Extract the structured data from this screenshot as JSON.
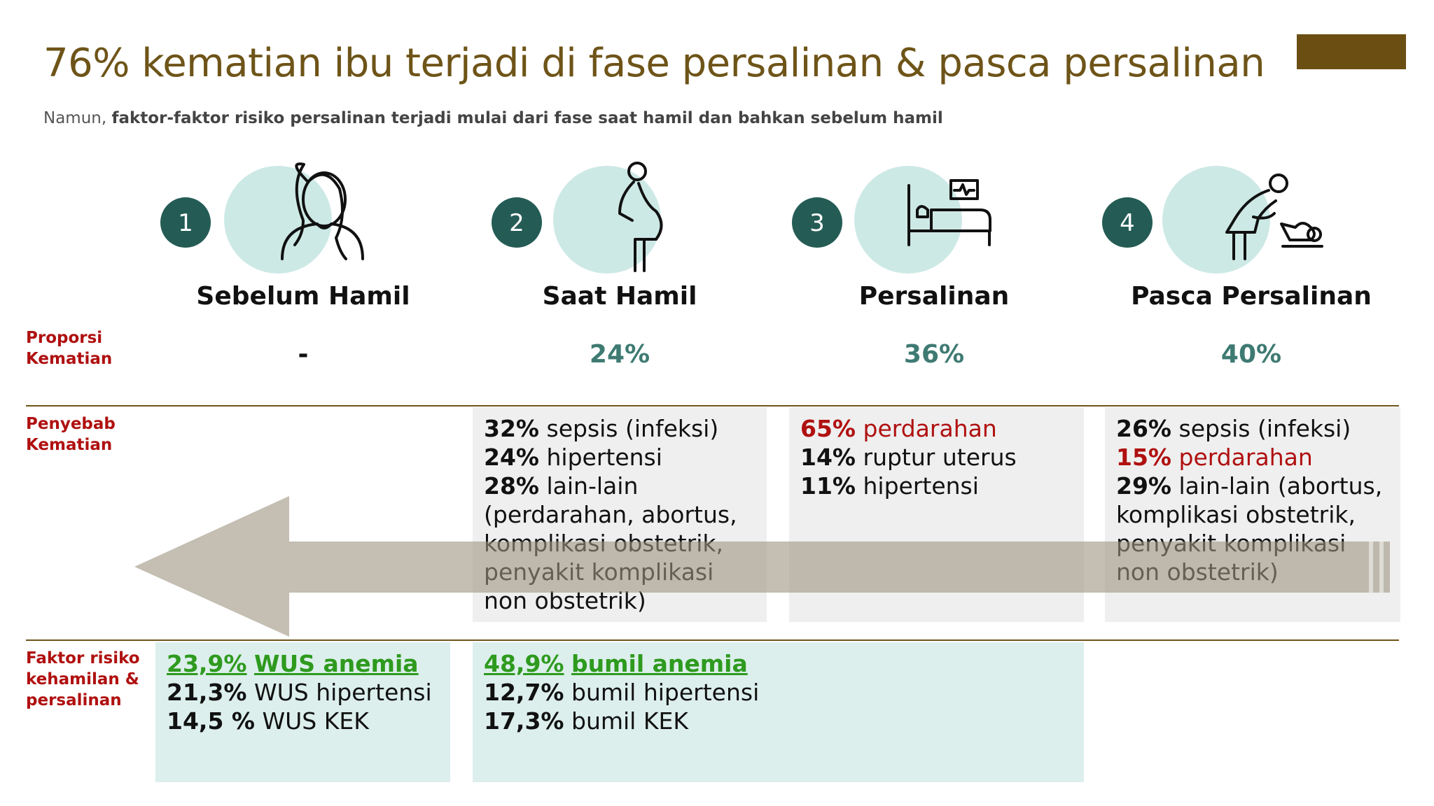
{
  "title": "76% kematian ibu terjadi di fase persalinan & pasca persalinan",
  "subtitle": {
    "lead": "Namun,",
    "bold": "faktor-faktor risiko persalinan terjadi mulai dari fase  saat hamil dan bahkan sebelum hamil"
  },
  "row_labels": [
    "Proporsi Kematian",
    "Penyebab Kematian",
    "Faktor risiko kehamilan & persalinan"
  ],
  "phases": [
    {
      "number": "1",
      "name": "Sebelum Hamil",
      "proportion": "-"
    },
    {
      "number": "2",
      "name": "Saat Hamil",
      "proportion": "24%"
    },
    {
      "number": "3",
      "name": "Persalinan",
      "proportion": "36%"
    },
    {
      "number": "4",
      "name": "Pasca Persalinan",
      "proportion": "40%"
    }
  ],
  "causes": [
    {
      "phase": 1,
      "lines": [
        {
          "pct": "32%",
          "text": "sepsis (infeksi)",
          "highlight": false
        },
        {
          "pct": "24%",
          "text": "hipertensi",
          "highlight": false
        },
        {
          "pct": "28%",
          "text": "lain-lain (perdarahan, abortus, komplikasi obstetrik, penyakit komplikasi non obstetrik)",
          "highlight": false
        }
      ]
    },
    {
      "phase": 2,
      "lines": [
        {
          "pct": "65%",
          "text": "perdarahan",
          "highlight": true
        },
        {
          "pct": "14%",
          "text": "ruptur uterus",
          "highlight": false
        },
        {
          "pct": "11%",
          "text": "hipertensi",
          "highlight": false
        }
      ]
    },
    {
      "phase": 3,
      "lines": [
        {
          "pct": "26%",
          "text": "sepsis (infeksi)",
          "highlight": false
        },
        {
          "pct": "15%",
          "text": "perdarahan",
          "highlight": true
        },
        {
          "pct": "29%",
          "text": "lain-lain (abortus, komplikasi obstetrik, penyakit komplikasi non obstetrik)",
          "highlight": false
        }
      ]
    }
  ],
  "risk_factors": [
    {
      "phase": 0,
      "lines": [
        {
          "pct": "23,9%",
          "text": "WUS anemia",
          "highlight": true
        },
        {
          "pct": "21,3%",
          "text": "WUS hipertensi",
          "highlight": false
        },
        {
          "pct": "14,5 %",
          "text": "WUS KEK",
          "highlight": false
        }
      ]
    },
    {
      "phase": 1,
      "lines": [
        {
          "pct": "48,9%",
          "text": "bumil anemia",
          "highlight": true
        },
        {
          "pct": "12,7%",
          "text": "bumil hipertensi",
          "highlight": false
        },
        {
          "pct": "17,3%",
          "text": "bumil KEK",
          "highlight": false
        }
      ]
    }
  ]
}
